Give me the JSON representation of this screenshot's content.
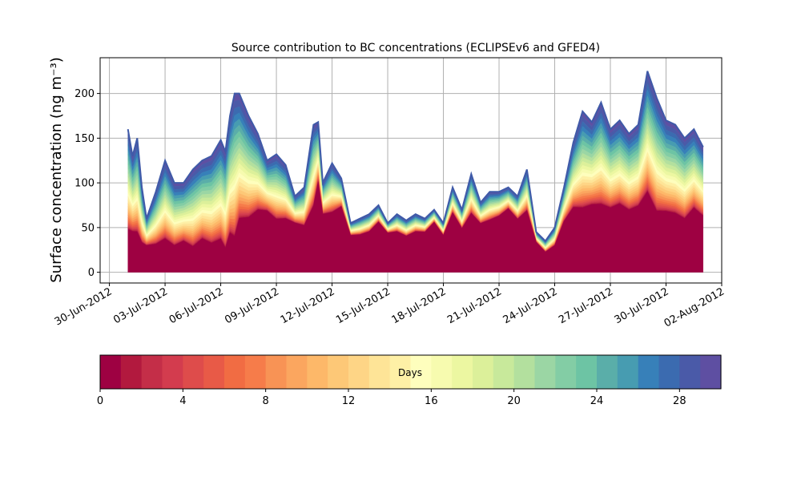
{
  "chart_data": {
    "type": "area",
    "title": "Source contribution to BC concentrations (ECLIPSEv6 and GFED4)",
    "ylabel": "Surface concentration (ng m⁻³)",
    "xlabel": "",
    "x_range": [
      "2012-06-29T12:00",
      "2012-08-02T00:00"
    ],
    "ylim": [
      -12,
      240
    ],
    "grid": true,
    "xticks": [
      "2012-06-30",
      "2012-07-03",
      "2012-07-06",
      "2012-07-09",
      "2012-07-12",
      "2012-07-15",
      "2012-07-18",
      "2012-07-21",
      "2012-07-24",
      "2012-07-27",
      "2012-07-30",
      "2012-08-02"
    ],
    "xtick_labels": [
      "30-Jun-2012",
      "03-Jul-2012",
      "06-Jul-2012",
      "09-Jul-2012",
      "12-Jul-2012",
      "15-Jul-2012",
      "18-Jul-2012",
      "21-Jul-2012",
      "24-Jul-2012",
      "27-Jul-2012",
      "30-Jul-2012",
      "02-Aug-2012"
    ],
    "yticks": [
      0,
      50,
      100,
      150,
      200
    ],
    "ytick_labels": [
      "0",
      "50",
      "100",
      "150",
      "200"
    ],
    "total_series": {
      "x": [
        "2012-07-01T00:00",
        "2012-07-01T06:00",
        "2012-07-01T12:00",
        "2012-07-01T18:00",
        "2012-07-02T00:00",
        "2012-07-02T12:00",
        "2012-07-03T00:00",
        "2012-07-03T12:00",
        "2012-07-04T00:00",
        "2012-07-04T12:00",
        "2012-07-05T00:00",
        "2012-07-05T12:00",
        "2012-07-06T00:00",
        "2012-07-06T06:00",
        "2012-07-06T12:00",
        "2012-07-06T18:00",
        "2012-07-07T00:00",
        "2012-07-07T12:00",
        "2012-07-08T00:00",
        "2012-07-08T12:00",
        "2012-07-09T00:00",
        "2012-07-09T12:00",
        "2012-07-10T00:00",
        "2012-07-10T12:00",
        "2012-07-11T00:00",
        "2012-07-11T06:00",
        "2012-07-11T12:00",
        "2012-07-12T00:00",
        "2012-07-12T12:00",
        "2012-07-13T00:00",
        "2012-07-13T12:00",
        "2012-07-14T00:00",
        "2012-07-14T12:00",
        "2012-07-15T00:00",
        "2012-07-15T12:00",
        "2012-07-16T00:00",
        "2012-07-16T12:00",
        "2012-07-17T00:00",
        "2012-07-17T12:00",
        "2012-07-18T00:00",
        "2012-07-18T12:00",
        "2012-07-19T00:00",
        "2012-07-19T12:00",
        "2012-07-20T00:00",
        "2012-07-20T12:00",
        "2012-07-21T00:00",
        "2012-07-21T12:00",
        "2012-07-22T00:00",
        "2012-07-22T12:00",
        "2012-07-23T00:00",
        "2012-07-23T12:00",
        "2012-07-24T00:00",
        "2012-07-24T12:00",
        "2012-07-25T00:00",
        "2012-07-25T12:00",
        "2012-07-26T00:00",
        "2012-07-26T12:00",
        "2012-07-27T00:00",
        "2012-07-27T12:00",
        "2012-07-28T00:00",
        "2012-07-28T12:00",
        "2012-07-29T00:00",
        "2012-07-29T12:00",
        "2012-07-30T00:00",
        "2012-07-30T12:00",
        "2012-07-31T00:00",
        "2012-07-31T12:00",
        "2012-08-01T00:00"
      ],
      "y": [
        160,
        130,
        150,
        95,
        60,
        90,
        125,
        100,
        100,
        115,
        125,
        130,
        148,
        135,
        175,
        200,
        200,
        175,
        155,
        125,
        132,
        120,
        85,
        95,
        165,
        168,
        100,
        122,
        105,
        55,
        60,
        65,
        75,
        55,
        65,
        58,
        65,
        60,
        70,
        55,
        95,
        70,
        110,
        78,
        90,
        90,
        95,
        85,
        115,
        45,
        35,
        50,
        95,
        145,
        180,
        168,
        190,
        160,
        170,
        155,
        165,
        225,
        195,
        170,
        165,
        150,
        160,
        140
      ]
    },
    "bands": {
      "count": 30,
      "unit": "Days",
      "colorbar_ticks": [
        0,
        4,
        8,
        12,
        16,
        20,
        24,
        28
      ],
      "colorbar_label": "Days",
      "fraction_first_band": [
        0.3,
        0.35,
        0.3,
        0.35,
        0.5,
        0.35,
        0.3,
        0.3,
        0.35,
        0.25,
        0.3,
        0.25,
        0.25,
        0.2,
        0.25,
        0.2,
        0.3,
        0.35,
        0.45,
        0.55,
        0.45,
        0.5,
        0.65,
        0.55,
        0.45,
        0.6,
        0.65,
        0.55,
        0.7,
        0.75,
        0.7,
        0.7,
        0.75,
        0.8,
        0.7,
        0.7,
        0.7,
        0.75,
        0.8,
        0.75,
        0.7,
        0.7,
        0.6,
        0.7,
        0.65,
        0.7,
        0.75,
        0.7,
        0.6,
        0.75,
        0.65,
        0.6,
        0.6,
        0.5,
        0.4,
        0.45,
        0.4,
        0.45,
        0.45,
        0.45,
        0.45,
        0.4,
        0.35,
        0.4,
        0.4,
        0.4,
        0.45,
        0.45
      ],
      "colors": [
        "#9e0142",
        "#b2193e",
        "#c42e48",
        "#d33c4e",
        "#de4c4b",
        "#e85a47",
        "#f16c43",
        "#f67c4a",
        "#f89355",
        "#fba65f",
        "#fdb869",
        "#fdc877",
        "#fed586",
        "#fee497",
        "#fef0a6",
        "#fefebd",
        "#f7fbaf",
        "#ecf7a1",
        "#dcf09a",
        "#c8e99b",
        "#b3e09e",
        "#9bd6a4",
        "#83cda5",
        "#6dc4a4",
        "#5aaea9",
        "#479cb1",
        "#3780b9",
        "#3b6bb0",
        "#4a5aa8",
        "#5e4fa2"
      ]
    }
  }
}
